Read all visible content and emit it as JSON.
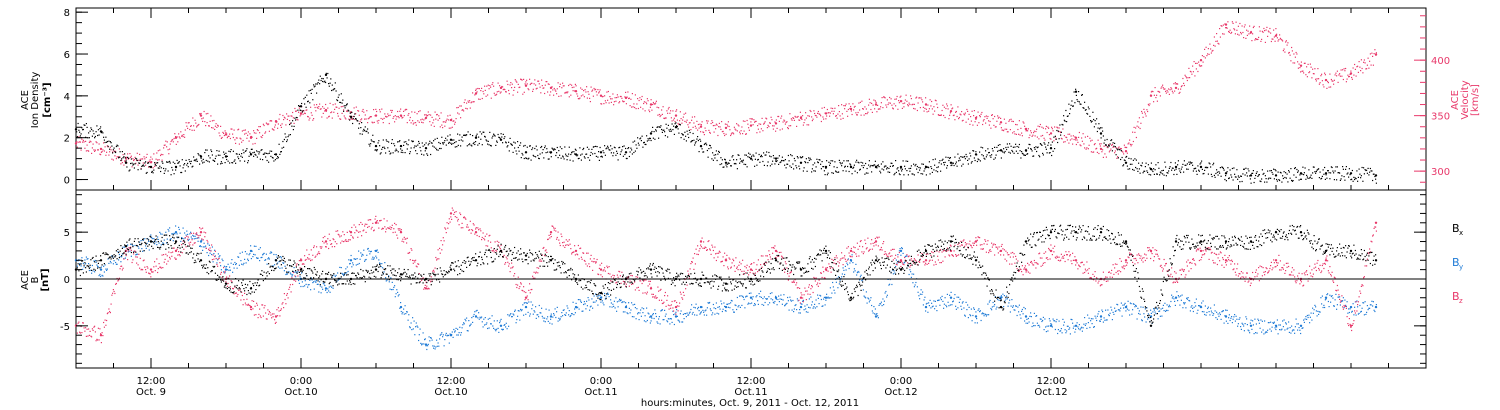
{
  "chart_data": [
    {
      "type": "scatter",
      "panel": "top",
      "ylabel": [
        "ACE",
        "Ion Density",
        "[cm⁻³]"
      ],
      "ylabel_right": [
        "ACE",
        "Velocity",
        "[km/s]"
      ],
      "ylim_left": [
        -0.5,
        8.2
      ],
      "ylim_right": [
        283,
        447
      ],
      "yticks_left": [
        "0",
        "2",
        "4",
        "6",
        "8"
      ],
      "yticks_right": [
        "300",
        "350",
        "400"
      ],
      "x_range_hours": [
        0,
        108
      ],
      "series": [
        {
          "axis": "left",
          "color": "#000000",
          "x": [
            0,
            2,
            4,
            6,
            8,
            10,
            12,
            14,
            16,
            18,
            20,
            22,
            24,
            26,
            28,
            30,
            32,
            34,
            36,
            38,
            40,
            42,
            44,
            46,
            48,
            50,
            52,
            54,
            56,
            58,
            60,
            62,
            64,
            66,
            68,
            70,
            72,
            74,
            76,
            78,
            80,
            82,
            84,
            86,
            88,
            90,
            92,
            94,
            96,
            98,
            100,
            102,
            104
          ],
          "y": [
            2.4,
            2.3,
            0.8,
            0.6,
            0.6,
            1.1,
            1.1,
            1.2,
            1.2,
            3.5,
            5.0,
            3.0,
            1.6,
            1.6,
            1.5,
            1.9,
            2.0,
            1.9,
            1.3,
            1.3,
            1.2,
            1.3,
            1.3,
            2.2,
            2.5,
            1.6,
            0.8,
            1.0,
            1.0,
            0.8,
            0.6,
            0.6,
            0.6,
            0.6,
            0.6,
            0.8,
            1.2,
            1.4,
            1.4,
            1.5,
            4.2,
            2.2,
            0.8,
            0.5,
            0.6,
            0.6,
            0.3,
            0.2,
            0.2,
            0.3,
            0.3,
            0.3,
            0.2
          ]
        },
        {
          "axis": "right",
          "color": "#e8386a",
          "x": [
            0,
            2,
            4,
            6,
            8,
            10,
            12,
            14,
            16,
            18,
            20,
            22,
            24,
            26,
            28,
            30,
            32,
            34,
            36,
            38,
            40,
            42,
            44,
            46,
            48,
            50,
            52,
            54,
            56,
            58,
            60,
            62,
            64,
            66,
            68,
            70,
            72,
            74,
            76,
            78,
            80,
            82,
            84,
            86,
            88,
            90,
            92,
            94,
            96,
            98,
            100,
            102,
            104
          ],
          "y": [
            325,
            320,
            312,
            308,
            330,
            350,
            333,
            330,
            345,
            352,
            355,
            353,
            350,
            350,
            348,
            346,
            370,
            375,
            377,
            375,
            372,
            368,
            366,
            360,
            350,
            340,
            339,
            341,
            343,
            348,
            352,
            356,
            360,
            363,
            360,
            354,
            348,
            344,
            338,
            334,
            330,
            320,
            318,
            368,
            375,
            400,
            432,
            425,
            422,
            395,
            382,
            388,
            405
          ]
        }
      ]
    },
    {
      "type": "scatter",
      "panel": "bottom",
      "ylabel": [
        "ACE",
        "B",
        "[nT]"
      ],
      "ylim": [
        -9.5,
        9.5
      ],
      "yticks": [
        "-5",
        "0",
        "5"
      ],
      "x_range_hours": [
        0,
        108
      ],
      "series": [
        {
          "name": "B",
          "sub": "x",
          "color": "#000000",
          "x": [
            0,
            2,
            4,
            6,
            8,
            10,
            12,
            14,
            16,
            18,
            20,
            22,
            24,
            26,
            28,
            30,
            32,
            34,
            36,
            38,
            40,
            42,
            44,
            46,
            48,
            50,
            52,
            54,
            56,
            58,
            60,
            62,
            64,
            66,
            68,
            70,
            72,
            74,
            76,
            78,
            80,
            82,
            84,
            86,
            88,
            90,
            92,
            94,
            96,
            98,
            100,
            102,
            104
          ],
          "y": [
            1,
            2,
            3.5,
            4,
            4,
            2,
            -0.5,
            -1,
            2,
            1,
            0,
            0,
            1,
            0.5,
            0,
            1,
            2,
            3,
            2.5,
            2,
            0,
            -1.5,
            0,
            1,
            0,
            0,
            -0.5,
            0,
            2,
            1,
            3,
            -2,
            2,
            1,
            3,
            4,
            2,
            -3,
            4,
            5,
            5,
            5,
            4,
            -5,
            4,
            4,
            4,
            4,
            5,
            5,
            3,
            3,
            2
          ]
        },
        {
          "name": "B",
          "sub": "y",
          "color": "#1f7bd6",
          "x": [
            0,
            2,
            4,
            6,
            8,
            10,
            12,
            14,
            16,
            18,
            20,
            22,
            24,
            26,
            28,
            30,
            32,
            34,
            36,
            38,
            40,
            42,
            44,
            46,
            48,
            50,
            52,
            54,
            56,
            58,
            60,
            62,
            64,
            66,
            68,
            70,
            72,
            74,
            76,
            78,
            80,
            82,
            84,
            86,
            88,
            90,
            92,
            94,
            96,
            98,
            100,
            102,
            104
          ],
          "y": [
            2,
            1,
            3,
            4,
            5,
            4,
            1,
            3,
            2,
            0,
            -1,
            2,
            3,
            -3,
            -7,
            -6,
            -4,
            -5,
            -3,
            -4,
            -3,
            -2,
            -3,
            -4,
            -4,
            -3,
            -3,
            -2,
            -2,
            -3,
            -2,
            2,
            -4,
            3,
            -3,
            -2,
            -4,
            -2,
            -4,
            -5,
            -5,
            -4,
            -3,
            -4,
            -2,
            -3,
            -4,
            -5,
            -5,
            -5,
            -2,
            -3,
            -3
          ]
        },
        {
          "name": "B",
          "sub": "z",
          "color": "#e8386a",
          "x": [
            0,
            2,
            4,
            6,
            8,
            10,
            12,
            14,
            16,
            18,
            20,
            22,
            24,
            26,
            28,
            30,
            32,
            34,
            36,
            38,
            40,
            42,
            44,
            46,
            48,
            50,
            52,
            54,
            56,
            58,
            60,
            62,
            64,
            66,
            68,
            70,
            72,
            74,
            76,
            78,
            80,
            82,
            84,
            86,
            88,
            90,
            92,
            94,
            96,
            98,
            100,
            102,
            104
          ],
          "y": [
            -5,
            -6,
            3,
            1,
            3,
            5,
            0,
            -3,
            -4,
            2,
            4,
            5,
            6,
            5,
            -1,
            7,
            5,
            3,
            -2,
            5,
            3,
            1,
            0,
            -1,
            -3,
            4,
            2,
            1,
            3,
            -2,
            1,
            3,
            4,
            2,
            2,
            3,
            4,
            3,
            1,
            3,
            2,
            0,
            2,
            3,
            0,
            3,
            2,
            0,
            2,
            0,
            2,
            -5,
            6
          ]
        }
      ]
    }
  ],
  "x_axis": {
    "ticks": [
      {
        "time": "12:00",
        "date": "Oct. 9",
        "hour": 6
      },
      {
        "time": "0:00",
        "date": "Oct.10",
        "hour": 18
      },
      {
        "time": "12:00",
        "date": "Oct.10",
        "hour": 30
      },
      {
        "time": "0:00",
        "date": "Oct.11",
        "hour": 42
      },
      {
        "time": "12:00",
        "date": "Oct.11",
        "hour": 54
      },
      {
        "time": "0:00",
        "date": "Oct.12",
        "hour": 66
      },
      {
        "time": "12:00",
        "date": "Oct.12",
        "hour": 78
      }
    ],
    "minor_step_hours": 3,
    "label": "hours:minutes, Oct.  9, 2011 - Oct. 12, 2011"
  },
  "colors": {
    "density": "#000000",
    "velocity": "#e8386a",
    "bx": "#000000",
    "by": "#1f7bd6",
    "bz": "#e8386a"
  }
}
